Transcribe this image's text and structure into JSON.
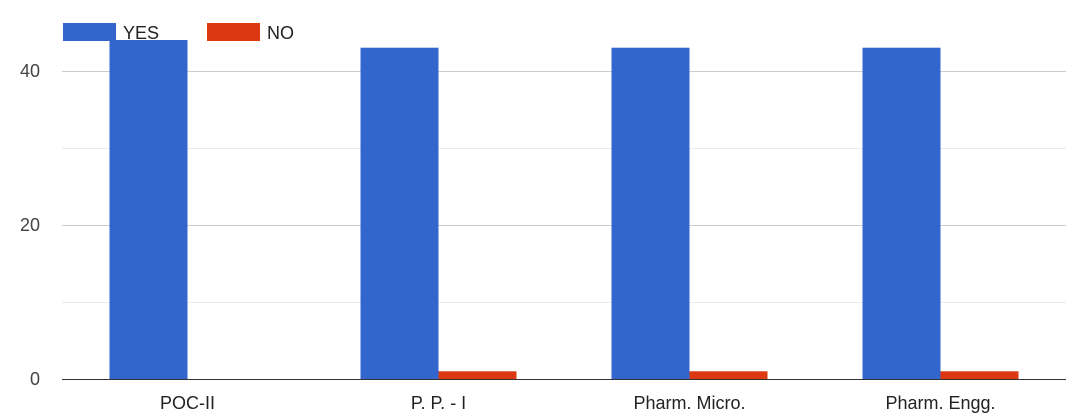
{
  "chart_data": {
    "type": "bar",
    "categories": [
      "POC-II",
      "P. P. - I",
      "Pharm. Micro.",
      "Pharm. Engg."
    ],
    "series": [
      {
        "name": "YES",
        "values": [
          44,
          43,
          43,
          43
        ],
        "color": "#3366cc"
      },
      {
        "name": "NO",
        "values": [
          0,
          1,
          1,
          1
        ],
        "color": "#dc3912"
      }
    ],
    "ylim": [
      0,
      44
    ],
    "y_ticks": [
      0,
      20,
      40
    ],
    "y_tick_labels": [
      "0",
      "20",
      "40"
    ],
    "grid": true,
    "legend_position": "top-left"
  }
}
